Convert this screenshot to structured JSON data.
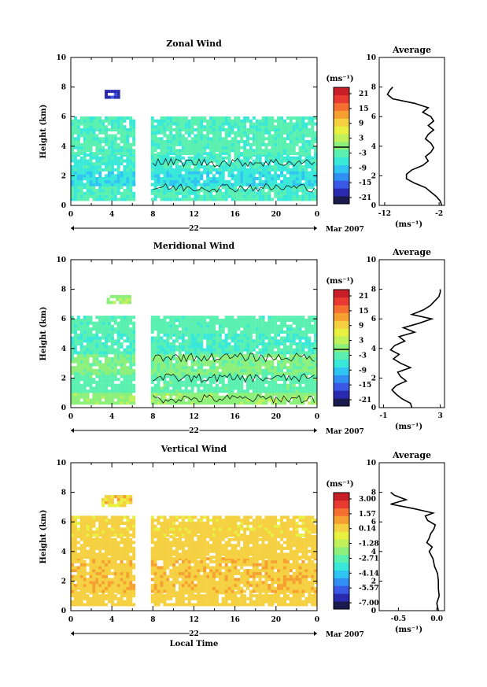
{
  "xaxis": {
    "hour_ticks": [
      "0",
      "4",
      "8",
      "12",
      "16",
      "20",
      "0"
    ],
    "day_label": "22",
    "month_label": "Mar 2007",
    "xlabel": "Local Time"
  },
  "height_axis": {
    "ylabel": "Height (km)",
    "ticks": [
      "0",
      "2",
      "4",
      "6",
      "8",
      "10"
    ]
  },
  "colorbar_unit": "(ms⁻¹)",
  "avg_unit": "(ms⁻¹)",
  "colors": {
    "scale": [
      "#1a1a4d",
      "#2a2ab0",
      "#3a58e6",
      "#2f8ff2",
      "#2fc4f2",
      "#38e8d8",
      "#5af0b0",
      "#8cf07a",
      "#c0f05a",
      "#e8f040",
      "#f5d040",
      "#f5a030",
      "#f57030",
      "#e83a30",
      "#c81e28"
    ],
    "contour": "#000000",
    "profile": "#000000"
  },
  "chart_data": [
    {
      "type": "heatmap",
      "title": "Zonal Wind",
      "ylabel": "Height (km)",
      "xlabel": "",
      "xlim": [
        0,
        24
      ],
      "ylim": [
        0,
        10
      ],
      "colorbar": {
        "unit": "(ms⁻¹)",
        "ticks": [
          "21",
          "15",
          "9",
          "3",
          "-3",
          "-9",
          "-15",
          "-21"
        ],
        "range": [
          -24,
          24
        ]
      },
      "gap_hours": [
        6,
        7.6
      ],
      "bands": [
        {
          "y": [
            0.3,
            1.3
          ],
          "value": -4.5
        },
        {
          "y": [
            1.3,
            2.3
          ],
          "value": -7.5
        },
        {
          "y": [
            2.3,
            3.4
          ],
          "value": -5.5
        },
        {
          "y": [
            3.4,
            5.0
          ],
          "value": -4.0
        },
        {
          "y": [
            5.0,
            6.0
          ],
          "value": -4.5
        }
      ],
      "features": [
        {
          "label": "strong westward patch",
          "x": [
            3.3,
            4.5
          ],
          "y": [
            7.2,
            7.7
          ],
          "value": -18
        }
      ],
      "average_profile": {
        "title": "Average",
        "xlabel": "(ms⁻¹)",
        "xticks": [
          "-12",
          "-2"
        ],
        "xlim": [
          -13,
          -1
        ],
        "yticks": [
          "0",
          "2",
          "4",
          "6",
          "8",
          "10"
        ],
        "height": [
          0.0,
          0.3,
          0.6,
          0.9,
          1.2,
          1.5,
          1.8,
          2.1,
          2.4,
          2.7,
          3.0,
          3.3,
          3.6,
          3.9,
          4.2,
          4.5,
          4.8,
          5.1,
          5.4,
          5.7,
          6.0,
          6.3,
          6.6,
          6.9,
          7.2,
          7.5,
          7.8,
          8.0
        ],
        "value": [
          -1.5,
          -1.8,
          -2.5,
          -3.5,
          -4.5,
          -6.5,
          -8.0,
          -8.0,
          -7.0,
          -5.0,
          -4.0,
          -4.5,
          -3.5,
          -3.0,
          -3.5,
          -4.5,
          -4.0,
          -3.0,
          -4.0,
          -3.0,
          -3.5,
          -5.0,
          -4.0,
          -6.5,
          -10.5,
          -11.5,
          -11.0,
          -10.5
        ]
      }
    },
    {
      "type": "heatmap",
      "title": "Meridional Wind",
      "ylabel": "Height (km)",
      "xlabel": "",
      "xlim": [
        0,
        24
      ],
      "ylim": [
        0,
        10
      ],
      "colorbar": {
        "unit": "(ms⁻¹)",
        "ticks": [
          "21",
          "15",
          "9",
          "3",
          "-3",
          "-9",
          "-15",
          "-21"
        ],
        "range": [
          -24,
          24
        ]
      },
      "gap_hours": [
        6,
        7.6
      ],
      "bands": [
        {
          "y": [
            0.2,
            1.0
          ],
          "value": 0.5
        },
        {
          "y": [
            1.0,
            2.2
          ],
          "value": -3.0
        },
        {
          "y": [
            2.2,
            3.6
          ],
          "value": -1.0
        },
        {
          "y": [
            3.6,
            5.0
          ],
          "value": -4.5
        },
        {
          "y": [
            5.0,
            6.2
          ],
          "value": -3.5
        }
      ],
      "features": [
        {
          "label": "early block",
          "x": [
            3.5,
            5.8
          ],
          "y": [
            7.0,
            7.6
          ],
          "value": 1.5
        }
      ],
      "average_profile": {
        "title": "Average",
        "xlabel": "(ms⁻¹)",
        "xticks": [
          "-1",
          "3"
        ],
        "xlim": [
          -1.3,
          3.3
        ],
        "yticks": [
          "0",
          "2",
          "4",
          "6",
          "8",
          "10"
        ],
        "height": [
          0.0,
          0.3,
          0.6,
          0.9,
          1.2,
          1.5,
          1.8,
          2.1,
          2.4,
          2.7,
          3.0,
          3.3,
          3.6,
          3.9,
          4.2,
          4.5,
          4.8,
          5.1,
          5.4,
          5.7,
          6.0,
          6.3,
          6.6,
          6.9,
          7.2,
          7.5,
          7.8,
          8.0
        ],
        "value": [
          1.0,
          0.9,
          0.3,
          -0.1,
          -0.4,
          -0.1,
          0.6,
          0.2,
          0.0,
          0.9,
          0.2,
          -0.3,
          0.1,
          -0.5,
          -0.2,
          0.5,
          0.1,
          1.2,
          0.4,
          1.5,
          2.4,
          1.0,
          1.8,
          2.3,
          2.6,
          2.9,
          3.0,
          3.0
        ]
      }
    },
    {
      "type": "heatmap",
      "title": "Vertical Wind",
      "ylabel": "Height (km)",
      "xlabel": "Local Time",
      "xlim": [
        0,
        24
      ],
      "ylim": [
        0,
        10
      ],
      "colorbar": {
        "unit": "(ms⁻¹)",
        "ticks": [
          "3.00",
          "1.57",
          "0.14",
          "-1.28",
          "-2.71",
          "-4.14",
          "-5.57",
          "-7.00"
        ],
        "range": [
          -7.7,
          3.7
        ]
      },
      "gap_hours": [
        6,
        7.6
      ],
      "bands": [
        {
          "y": [
            0.3,
            1.2
          ],
          "value": 0.3
        },
        {
          "y": [
            1.2,
            3.5
          ],
          "value": 0.5
        },
        {
          "y": [
            3.5,
            5.0
          ],
          "value": 0.2
        },
        {
          "y": [
            5.0,
            6.3
          ],
          "value": 0.1
        }
      ],
      "features": [
        {
          "label": "early block",
          "x": [
            3.0,
            5.8
          ],
          "y": [
            7.0,
            7.8
          ],
          "value": 0.2
        }
      ],
      "average_profile": {
        "title": "Average",
        "xlabel": "(ms⁻¹)",
        "xticks": [
          "-0.5",
          "0.0"
        ],
        "xlim": [
          -0.75,
          0.1
        ],
        "yticks": [
          "0",
          "2",
          "4",
          "6",
          "8",
          "10"
        ],
        "height": [
          0.0,
          0.5,
          1.0,
          1.5,
          2.0,
          2.5,
          3.0,
          3.5,
          4.0,
          4.3,
          4.6,
          4.9,
          5.2,
          5.5,
          5.8,
          6.1,
          6.4,
          6.6,
          6.9,
          7.2,
          7.5,
          7.8,
          8.0
        ],
        "value": [
          0.02,
          0.0,
          0.03,
          0.02,
          0.02,
          0.01,
          -0.03,
          -0.05,
          -0.1,
          -0.06,
          -0.13,
          -0.1,
          -0.08,
          -0.04,
          -0.02,
          -0.12,
          -0.15,
          -0.05,
          -0.3,
          -0.6,
          -0.4,
          -0.55,
          -0.6
        ]
      }
    }
  ]
}
